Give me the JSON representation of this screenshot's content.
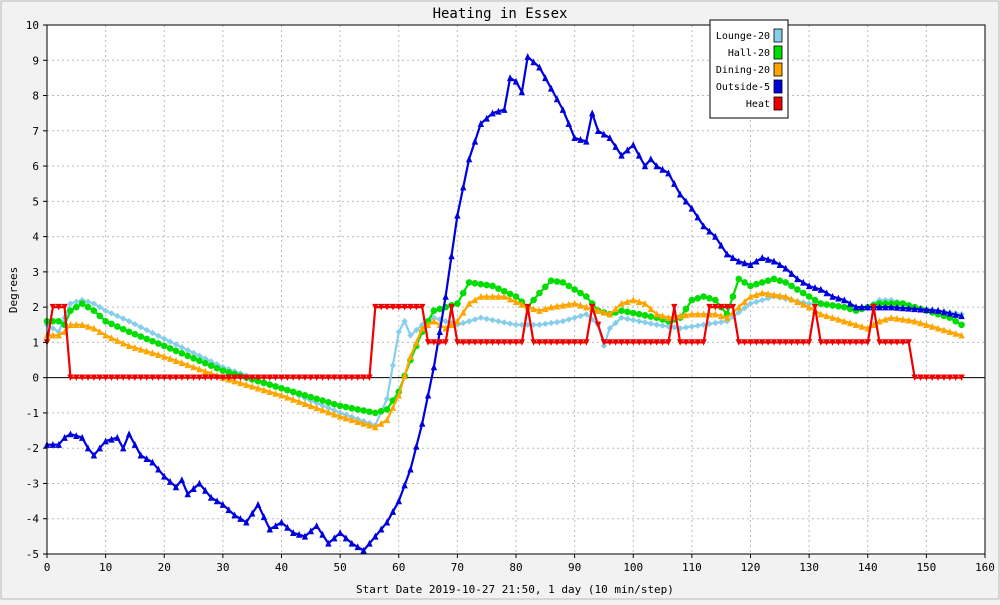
{
  "chart_data": {
    "type": "line",
    "title": "Heating in Essex",
    "xlabel": "Start Date 2019-10-27 21:50, 1 day (10 min/step)",
    "ylabel": "Degrees",
    "xlim": [
      0,
      160
    ],
    "ylim": [
      -5,
      10
    ],
    "x_ticks": [
      0,
      10,
      20,
      30,
      40,
      50,
      60,
      70,
      80,
      90,
      100,
      110,
      120,
      130,
      140,
      150,
      160
    ],
    "y_ticks": [
      -5,
      -4,
      -3,
      -2,
      -1,
      0,
      1,
      2,
      3,
      4,
      5,
      6,
      7,
      8,
      9,
      10
    ],
    "grid": true,
    "legend_position": "top-right",
    "series": [
      {
        "name": "Lounge-20",
        "color": "#87ceeb",
        "marker": "diamond",
        "points": [
          [
            0,
            1.5
          ],
          [
            2,
            1.3
          ],
          [
            4,
            2.1
          ],
          [
            6,
            2.2
          ],
          [
            8,
            2.1
          ],
          [
            10,
            1.9
          ],
          [
            14,
            1.6
          ],
          [
            20,
            1.1
          ],
          [
            30,
            0.3
          ],
          [
            40,
            -0.3
          ],
          [
            50,
            -1.0
          ],
          [
            56,
            -1.35
          ],
          [
            58,
            -0.6
          ],
          [
            60,
            1.3
          ],
          [
            61,
            1.6
          ],
          [
            62,
            1.2
          ],
          [
            64,
            1.5
          ],
          [
            66,
            1.7
          ],
          [
            70,
            1.5
          ],
          [
            74,
            1.7
          ],
          [
            80,
            1.5
          ],
          [
            84,
            1.5
          ],
          [
            88,
            1.6
          ],
          [
            92,
            1.8
          ],
          [
            94,
            1.5
          ],
          [
            95,
            0.9
          ],
          [
            96,
            1.4
          ],
          [
            98,
            1.7
          ],
          [
            104,
            1.5
          ],
          [
            108,
            1.4
          ],
          [
            112,
            1.5
          ],
          [
            116,
            1.6
          ],
          [
            120,
            2.1
          ],
          [
            124,
            2.3
          ],
          [
            130,
            2.1
          ],
          [
            136,
            2.0
          ],
          [
            140,
            2.0
          ],
          [
            142,
            2.2
          ],
          [
            144,
            2.2
          ],
          [
            148,
            2.0
          ],
          [
            152,
            1.9
          ],
          [
            156,
            1.8
          ]
        ]
      },
      {
        "name": "Hall-20",
        "color": "#00dd00",
        "marker": "circle",
        "points": [
          [
            0,
            1.6
          ],
          [
            2,
            1.6
          ],
          [
            3,
            1.5
          ],
          [
            4,
            1.9
          ],
          [
            6,
            2.1
          ],
          [
            8,
            1.9
          ],
          [
            10,
            1.6
          ],
          [
            14,
            1.3
          ],
          [
            20,
            0.9
          ],
          [
            30,
            0.2
          ],
          [
            40,
            -0.3
          ],
          [
            50,
            -0.8
          ],
          [
            56,
            -1.0
          ],
          [
            58,
            -0.9
          ],
          [
            60,
            -0.4
          ],
          [
            62,
            0.5
          ],
          [
            64,
            1.3
          ],
          [
            66,
            1.9
          ],
          [
            68,
            2.0
          ],
          [
            70,
            2.1
          ],
          [
            72,
            2.7
          ],
          [
            76,
            2.6
          ],
          [
            80,
            2.3
          ],
          [
            82,
            2.0
          ],
          [
            84,
            2.4
          ],
          [
            86,
            2.75
          ],
          [
            88,
            2.7
          ],
          [
            92,
            2.3
          ],
          [
            94,
            1.9
          ],
          [
            96,
            1.8
          ],
          [
            98,
            1.9
          ],
          [
            104,
            1.7
          ],
          [
            106,
            1.6
          ],
          [
            108,
            1.7
          ],
          [
            110,
            2.2
          ],
          [
            112,
            2.3
          ],
          [
            114,
            2.2
          ],
          [
            116,
            1.8
          ],
          [
            118,
            2.8
          ],
          [
            120,
            2.6
          ],
          [
            124,
            2.8
          ],
          [
            126,
            2.7
          ],
          [
            130,
            2.3
          ],
          [
            132,
            2.1
          ],
          [
            136,
            2.0
          ],
          [
            138,
            1.9
          ],
          [
            140,
            2.0
          ],
          [
            142,
            2.1
          ],
          [
            146,
            2.1
          ],
          [
            150,
            1.9
          ],
          [
            154,
            1.7
          ],
          [
            156,
            1.5
          ]
        ]
      },
      {
        "name": "Dining-20",
        "color": "#ffa500",
        "marker": "triangle",
        "points": [
          [
            0,
            1.2
          ],
          [
            2,
            1.2
          ],
          [
            3,
            1.3
          ],
          [
            4,
            1.5
          ],
          [
            6,
            1.5
          ],
          [
            8,
            1.4
          ],
          [
            10,
            1.2
          ],
          [
            14,
            0.9
          ],
          [
            20,
            0.6
          ],
          [
            30,
            0.0
          ],
          [
            40,
            -0.5
          ],
          [
            50,
            -1.1
          ],
          [
            56,
            -1.4
          ],
          [
            58,
            -1.2
          ],
          [
            60,
            -0.5
          ],
          [
            62,
            0.6
          ],
          [
            64,
            1.4
          ],
          [
            66,
            1.6
          ],
          [
            68,
            1.4
          ],
          [
            70,
            1.6
          ],
          [
            72,
            2.1
          ],
          [
            74,
            2.3
          ],
          [
            78,
            2.3
          ],
          [
            82,
            2.0
          ],
          [
            84,
            1.9
          ],
          [
            86,
            2.0
          ],
          [
            90,
            2.1
          ],
          [
            94,
            1.9
          ],
          [
            96,
            1.8
          ],
          [
            98,
            2.1
          ],
          [
            100,
            2.2
          ],
          [
            102,
            2.1
          ],
          [
            104,
            1.8
          ],
          [
            106,
            1.7
          ],
          [
            110,
            1.8
          ],
          [
            114,
            1.8
          ],
          [
            116,
            1.7
          ],
          [
            118,
            2.0
          ],
          [
            120,
            2.3
          ],
          [
            122,
            2.4
          ],
          [
            126,
            2.3
          ],
          [
            130,
            2.0
          ],
          [
            132,
            1.8
          ],
          [
            136,
            1.6
          ],
          [
            140,
            1.4
          ],
          [
            142,
            1.6
          ],
          [
            144,
            1.7
          ],
          [
            148,
            1.6
          ],
          [
            152,
            1.4
          ],
          [
            156,
            1.2
          ]
        ]
      },
      {
        "name": "Outside-5",
        "color": "#0000dd",
        "marker": "triangle",
        "points": [
          [
            0,
            -1.9
          ],
          [
            2,
            -1.9
          ],
          [
            3,
            -1.7
          ],
          [
            4,
            -1.6
          ],
          [
            6,
            -1.7
          ],
          [
            7,
            -2.0
          ],
          [
            8,
            -2.2
          ],
          [
            10,
            -1.8
          ],
          [
            12,
            -1.7
          ],
          [
            13,
            -2.0
          ],
          [
            14,
            -1.6
          ],
          [
            16,
            -2.2
          ],
          [
            18,
            -2.4
          ],
          [
            20,
            -2.8
          ],
          [
            22,
            -3.1
          ],
          [
            23,
            -2.9
          ],
          [
            24,
            -3.3
          ],
          [
            26,
            -3.0
          ],
          [
            28,
            -3.4
          ],
          [
            30,
            -3.6
          ],
          [
            32,
            -3.9
          ],
          [
            34,
            -4.1
          ],
          [
            36,
            -3.6
          ],
          [
            38,
            -4.3
          ],
          [
            40,
            -4.1
          ],
          [
            42,
            -4.4
          ],
          [
            44,
            -4.5
          ],
          [
            46,
            -4.2
          ],
          [
            48,
            -4.7
          ],
          [
            50,
            -4.4
          ],
          [
            52,
            -4.7
          ],
          [
            54,
            -4.9
          ],
          [
            56,
            -4.5
          ],
          [
            58,
            -4.1
          ],
          [
            60,
            -3.5
          ],
          [
            62,
            -2.6
          ],
          [
            64,
            -1.3
          ],
          [
            66,
            0.3
          ],
          [
            68,
            2.3
          ],
          [
            70,
            4.6
          ],
          [
            72,
            6.2
          ],
          [
            74,
            7.2
          ],
          [
            76,
            7.5
          ],
          [
            78,
            7.6
          ],
          [
            79,
            8.5
          ],
          [
            80,
            8.4
          ],
          [
            81,
            8.1
          ],
          [
            82,
            9.1
          ],
          [
            84,
            8.8
          ],
          [
            86,
            8.2
          ],
          [
            88,
            7.6
          ],
          [
            90,
            6.8
          ],
          [
            92,
            6.7
          ],
          [
            93,
            7.5
          ],
          [
            94,
            7.0
          ],
          [
            96,
            6.8
          ],
          [
            98,
            6.3
          ],
          [
            100,
            6.6
          ],
          [
            102,
            6.0
          ],
          [
            103,
            6.2
          ],
          [
            104,
            6.0
          ],
          [
            106,
            5.8
          ],
          [
            108,
            5.2
          ],
          [
            110,
            4.8
          ],
          [
            112,
            4.3
          ],
          [
            114,
            4.0
          ],
          [
            116,
            3.5
          ],
          [
            118,
            3.3
          ],
          [
            120,
            3.2
          ],
          [
            122,
            3.4
          ],
          [
            124,
            3.3
          ],
          [
            126,
            3.1
          ],
          [
            128,
            2.8
          ],
          [
            130,
            2.6
          ],
          [
            132,
            2.5
          ],
          [
            134,
            2.3
          ],
          [
            136,
            2.2
          ],
          [
            138,
            2.0
          ],
          [
            140,
            2.0
          ],
          [
            144,
            2.0
          ],
          [
            148,
            1.95
          ],
          [
            152,
            1.9
          ],
          [
            156,
            1.75
          ]
        ]
      },
      {
        "name": "Heat",
        "color": "#ee0000",
        "marker": "triangle-down",
        "points": [
          [
            0,
            1.0
          ],
          [
            1,
            2.0
          ],
          [
            3,
            2.0
          ],
          [
            4,
            0.0
          ],
          [
            55,
            0.0
          ],
          [
            56,
            2.0
          ],
          [
            64,
            2.0
          ],
          [
            65,
            1.0
          ],
          [
            68,
            1.0
          ],
          [
            69,
            2.0
          ],
          [
            70,
            1.0
          ],
          [
            81,
            1.0
          ],
          [
            82,
            2.0
          ],
          [
            83,
            1.0
          ],
          [
            92,
            1.0
          ],
          [
            93,
            2.0
          ],
          [
            95,
            1.0
          ],
          [
            106,
            1.0
          ],
          [
            107,
            2.0
          ],
          [
            108,
            1.0
          ],
          [
            112,
            1.0
          ],
          [
            113,
            2.0
          ],
          [
            117,
            2.0
          ],
          [
            118,
            1.0
          ],
          [
            130,
            1.0
          ],
          [
            131,
            2.0
          ],
          [
            132,
            1.0
          ],
          [
            140,
            1.0
          ],
          [
            141,
            2.0
          ],
          [
            142,
            1.0
          ],
          [
            147,
            1.0
          ],
          [
            148,
            0.0
          ],
          [
            156,
            0.0
          ]
        ]
      }
    ]
  }
}
